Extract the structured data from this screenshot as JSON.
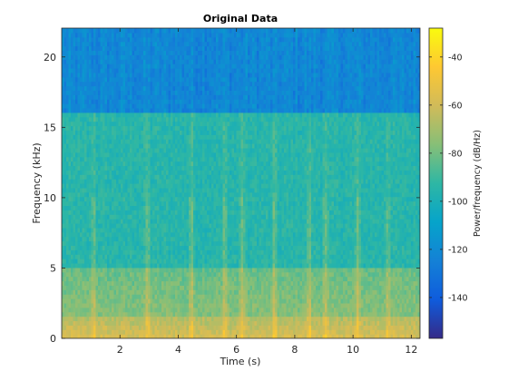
{
  "chart_data": {
    "type": "heatmap",
    "title": "Original Data",
    "xlabel": "Time (s)",
    "ylabel": "Frequency (kHz)",
    "xlim": [
      0,
      12.3
    ],
    "ylim": [
      0,
      22.05
    ],
    "x_ticks": [
      2,
      4,
      6,
      8,
      10,
      12
    ],
    "y_ticks": [
      0,
      5,
      10,
      15,
      20
    ],
    "colorbar": {
      "label": "Power/frequency (dB/Hz)",
      "range": [
        -157,
        -28
      ],
      "ticks": [
        -40,
        -60,
        -80,
        -100,
        -120,
        -140
      ],
      "colormap": "parula"
    },
    "regions": [
      {
        "freq_khz": [
          16.1,
          22.05
        ],
        "power_db": -122
      },
      {
        "freq_khz": [
          5,
          16.1
        ],
        "power_db": -95
      },
      {
        "freq_khz": [
          1.5,
          5
        ],
        "power_db": -82
      },
      {
        "freq_khz": [
          0,
          1.5
        ],
        "power_db": -58
      }
    ],
    "transients_s": [
      1.1,
      2.95,
      4.45,
      5.6,
      6.2,
      7.3,
      8.5,
      9.05,
      10.15,
      11.2
    ],
    "cutoff_khz": 16.1
  },
  "colors": {
    "parula_stops": [
      "#352a87",
      "#0f5cdd",
      "#1481d6",
      "#06a4ca",
      "#2eb7a4",
      "#87bf77",
      "#d1bb59",
      "#fec832",
      "#f9fb0e"
    ]
  }
}
